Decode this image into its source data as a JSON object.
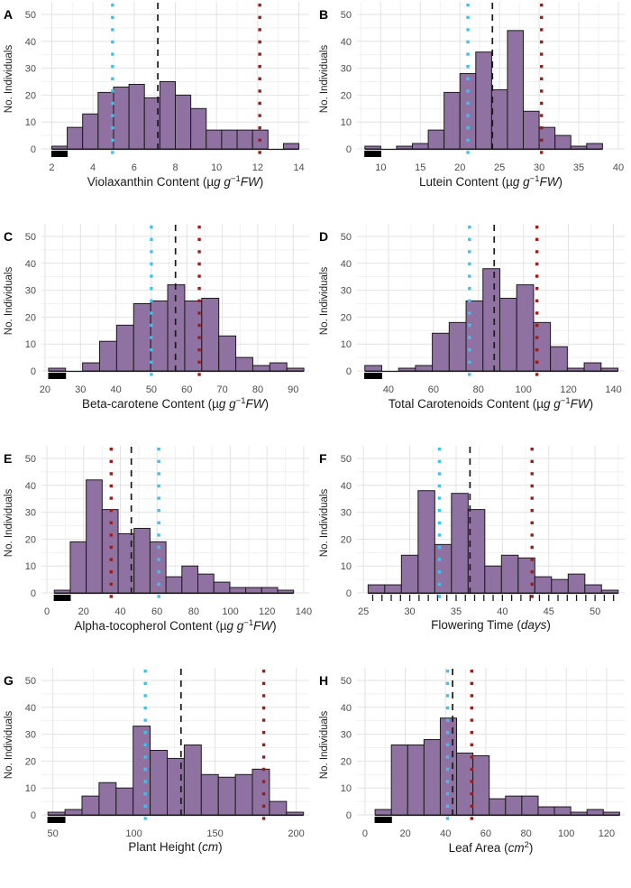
{
  "figure": {
    "ylabel": "No. Individuals",
    "yticks": [
      0,
      10,
      20,
      30,
      40,
      50
    ],
    "ylim": [
      0,
      52
    ],
    "colors": {
      "background": "#FFFFFF",
      "bar_fill": "#8F72A1",
      "bar_stroke": "#1A1A1A",
      "line_cyan": "#3FC1F0",
      "line_red": "#9C1C1C",
      "line_black": "#1A1A1A",
      "grid_major": "#E2E2E2",
      "grid_minor": "#F1F1F1",
      "tick_text": "#4D4D4D",
      "title_text": "#1A1A1A",
      "rug": "#000000"
    }
  },
  "chart_data": [
    {
      "letter": "A",
      "type": "bar",
      "xlabel_plain": "Violaxanthin Content (µg g⁻¹FW)",
      "xlabel_parts": [
        [
          "Violaxanthin Content (",
          "n"
        ],
        [
          "µ",
          "n"
        ],
        [
          "g",
          "i"
        ],
        [
          " ",
          "n"
        ],
        [
          "g",
          "i"
        ],
        [
          "−1",
          "s"
        ],
        [
          "FW",
          "i"
        ],
        [
          ")",
          "n"
        ]
      ],
      "xlim": [
        1.5,
        14.5
      ],
      "xticks": [
        2,
        4,
        6,
        8,
        10,
        12,
        14
      ],
      "bins": {
        "start": 2,
        "width": 0.75,
        "counts": [
          1,
          8,
          13,
          21,
          23,
          24,
          19,
          25,
          20,
          15,
          7,
          7,
          7,
          7,
          0,
          2
        ]
      },
      "ref_lines": {
        "cyan": 4.95,
        "black": 7.15,
        "red": 12.1
      }
    },
    {
      "letter": "B",
      "type": "bar",
      "xlabel_plain": "Lutein Content (µg g⁻¹FW)",
      "xlabel_parts": [
        [
          "Lutein Content (",
          "n"
        ],
        [
          "µ",
          "n"
        ],
        [
          "g",
          "i"
        ],
        [
          " ",
          "n"
        ],
        [
          "g",
          "i"
        ],
        [
          "−1",
          "s"
        ],
        [
          "FW",
          "i"
        ],
        [
          ")",
          "n"
        ]
      ],
      "xlim": [
        7,
        40.8
      ],
      "xticks": [
        10,
        15,
        20,
        25,
        30,
        35,
        40
      ],
      "bins": {
        "start": 8,
        "width": 2,
        "counts": [
          1,
          0,
          1,
          2,
          7,
          21,
          28,
          36,
          22,
          44,
          14,
          8,
          5,
          1,
          2
        ]
      },
      "ref_lines": {
        "cyan": 21.0,
        "black": 24.1,
        "red": 30.3
      }
    },
    {
      "letter": "C",
      "type": "bar",
      "xlabel_plain": "Beta-carotene Content (µg g⁻¹FW)",
      "xlabel_parts": [
        [
          "Beta-carotene Content (",
          "n"
        ],
        [
          "µ",
          "n"
        ],
        [
          "g",
          "i"
        ],
        [
          " ",
          "n"
        ],
        [
          "g",
          "i"
        ],
        [
          "−1",
          "s"
        ],
        [
          "FW",
          "i"
        ],
        [
          ")",
          "n"
        ]
      ],
      "xlim": [
        19,
        94.5
      ],
      "xticks": [
        20,
        30,
        40,
        50,
        60,
        70,
        80,
        90
      ],
      "bins": {
        "start": 21,
        "width": 4.8,
        "counts": [
          1,
          0,
          3,
          11,
          17,
          25,
          26,
          32,
          26,
          27,
          13,
          5,
          2,
          3,
          1
        ]
      },
      "ref_lines": {
        "cyan": 50.0,
        "black": 56.8,
        "red": 63.5
      }
    },
    {
      "letter": "D",
      "type": "bar",
      "xlabel_plain": "Total Carotenoids Content (µg g⁻¹FW)",
      "xlabel_parts": [
        [
          "Total Carotenoids Content (",
          "n"
        ],
        [
          "µ",
          "n"
        ],
        [
          "g",
          "i"
        ],
        [
          " ",
          "n"
        ],
        [
          "g",
          "i"
        ],
        [
          "−1",
          "s"
        ],
        [
          "FW",
          "i"
        ],
        [
          ")",
          "n"
        ]
      ],
      "xlim": [
        26,
        145
      ],
      "xticks": [
        40,
        60,
        80,
        100,
        120,
        140
      ],
      "bins": {
        "start": 29.5,
        "width": 7.5,
        "counts": [
          2,
          0,
          1,
          2,
          14,
          18,
          26,
          38,
          27,
          32,
          18,
          9,
          1,
          3,
          1
        ]
      },
      "ref_lines": {
        "cyan": 76.0,
        "black": 87.0,
        "red": 106.0
      }
    },
    {
      "letter": "E",
      "type": "bar",
      "xlabel_plain": "Alpha-tocopherol Content (µg g⁻¹FW)",
      "xlabel_parts": [
        [
          "Alpha-tocopherol Content (",
          "n"
        ],
        [
          "µ",
          "n"
        ],
        [
          "g",
          "i"
        ],
        [
          " ",
          "n"
        ],
        [
          "g",
          "i"
        ],
        [
          "−1",
          "s"
        ],
        [
          "FW",
          "i"
        ],
        [
          ")",
          "n"
        ]
      ],
      "xlim": [
        -3,
        143
      ],
      "xticks": [
        0,
        20,
        40,
        60,
        80,
        100,
        120,
        140
      ],
      "bins": {
        "start": 4,
        "width": 8.7,
        "counts": [
          1,
          19,
          42,
          31,
          22,
          24,
          19,
          6,
          10,
          7,
          4,
          2,
          2,
          2,
          1
        ]
      },
      "ref_lines": {
        "cyan": 61.0,
        "black": 46.0,
        "red": 35.0
      }
    },
    {
      "letter": "F",
      "type": "bar",
      "xlabel_plain": "Flowering Time (days)",
      "xlabel_parts": [
        [
          "Flowering Time (",
          "n"
        ],
        [
          "days",
          "i"
        ],
        [
          ")",
          "n"
        ]
      ],
      "xlim": [
        24.3,
        53.2
      ],
      "xticks": [
        25,
        30,
        35,
        40,
        45,
        50
      ],
      "bins": {
        "start": 25.5,
        "width": 1.8,
        "counts": [
          3,
          3,
          14,
          38,
          18,
          37,
          31,
          10,
          14,
          13,
          6,
          5,
          7,
          3,
          1
        ]
      },
      "ref_lines": {
        "cyan": 33.2,
        "black": 36.5,
        "red": 43.2
      },
      "rug": {
        "step": 1,
        "from": 26,
        "to": 52
      }
    },
    {
      "letter": "G",
      "type": "bar",
      "xlabel_plain": "Plant Height (cm)",
      "xlabel_parts": [
        [
          "Plant Height (",
          "n"
        ],
        [
          "cm",
          "i"
        ],
        [
          ")",
          "n"
        ]
      ],
      "xlim": [
        43,
        208
      ],
      "xticks": [
        50,
        100,
        150,
        200
      ],
      "bins": {
        "start": 47,
        "width": 10.5,
        "counts": [
          1,
          2,
          7,
          12,
          10,
          33,
          24,
          21,
          26,
          15,
          14,
          15,
          17,
          5,
          1
        ]
      },
      "ref_lines": {
        "cyan": 107.0,
        "black": 129.0,
        "red": 180.0
      }
    },
    {
      "letter": "H",
      "type": "bar",
      "xlabel_plain": "Leaf Area (cm²)",
      "xlabel_parts": [
        [
          "Leaf Area (",
          "n"
        ],
        [
          "cm",
          "i"
        ],
        [
          "2",
          "s"
        ],
        [
          ")",
          "n"
        ]
      ],
      "xlim": [
        -4,
        129
      ],
      "xticks": [
        0,
        20,
        40,
        60,
        80,
        100,
        120
      ],
      "bins": {
        "start": 5,
        "width": 8.1,
        "counts": [
          2,
          26,
          26,
          28,
          36,
          23,
          22,
          6,
          7,
          7,
          3,
          3,
          1,
          2,
          1
        ]
      },
      "ref_lines": {
        "cyan": 41.0,
        "black": 43.5,
        "red": 53.0
      }
    }
  ]
}
